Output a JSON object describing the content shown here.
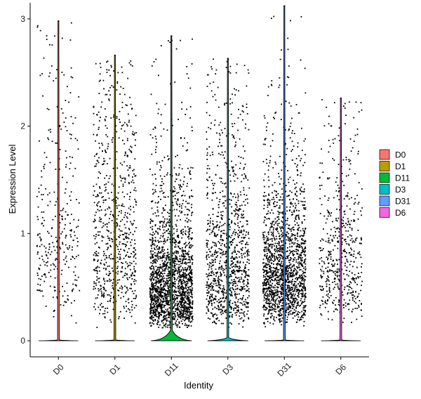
{
  "chart_data": {
    "type": "violin",
    "title": "",
    "xlabel": "Identity",
    "ylabel": "Expression Level",
    "ylim": [
      -0.15,
      3.15
    ],
    "y_ticks": [
      0,
      1,
      2,
      3
    ],
    "grid": false,
    "legend_position": "right",
    "categories": [
      "D0",
      "D1",
      "D11",
      "D3",
      "D31",
      "D6"
    ],
    "series": [
      {
        "name": "D0",
        "color": "#F8766D",
        "max": 2.98,
        "n_points": 330,
        "median": 0
      },
      {
        "name": "D1",
        "color": "#B79F00",
        "max": 2.66,
        "n_points": 720,
        "median": 0
      },
      {
        "name": "D11",
        "color": "#00BA38",
        "max": 2.84,
        "n_points": 1900,
        "median": 0
      },
      {
        "name": "D3",
        "color": "#00BFC4",
        "max": 2.63,
        "n_points": 1050,
        "median": 0
      },
      {
        "name": "D31",
        "color": "#619CFF",
        "max": 3.12,
        "n_points": 1650,
        "median": 0
      },
      {
        "name": "D6",
        "color": "#F564E3",
        "max": 2.26,
        "n_points": 520,
        "median": 0
      }
    ],
    "point_color": "#000000"
  }
}
